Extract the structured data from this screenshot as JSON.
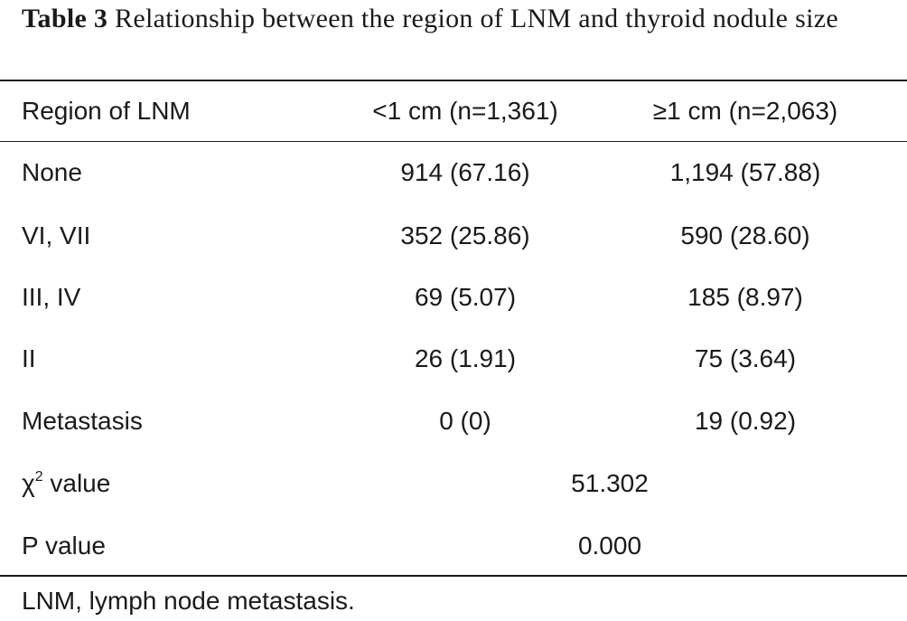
{
  "caption": {
    "label": "Table 3",
    "text": "Relationship between the region of LNM and thyroid nodule size"
  },
  "table": {
    "headers": [
      "Region of LNM",
      "<1 cm (n=1,361)",
      "≥1 cm (n=2,063)"
    ],
    "rows": [
      [
        "None",
        "914 (67.16)",
        "1,194 (57.88)"
      ],
      [
        "VI, VII",
        "352 (25.86)",
        "590 (28.60)"
      ],
      [
        "III, IV",
        "69 (5.07)",
        "185 (8.97)"
      ],
      [
        "II",
        "26 (1.91)",
        "75 (3.64)"
      ],
      [
        "Metastasis",
        "0 (0)",
        "19 (0.92)"
      ]
    ],
    "stats": [
      {
        "label_main": "χ",
        "label_sup": "2",
        "label_rest": " value",
        "value": "51.302"
      },
      {
        "label_main": "P value",
        "value": "0.000"
      }
    ]
  },
  "footnote": "LNM, lymph node metastasis."
}
